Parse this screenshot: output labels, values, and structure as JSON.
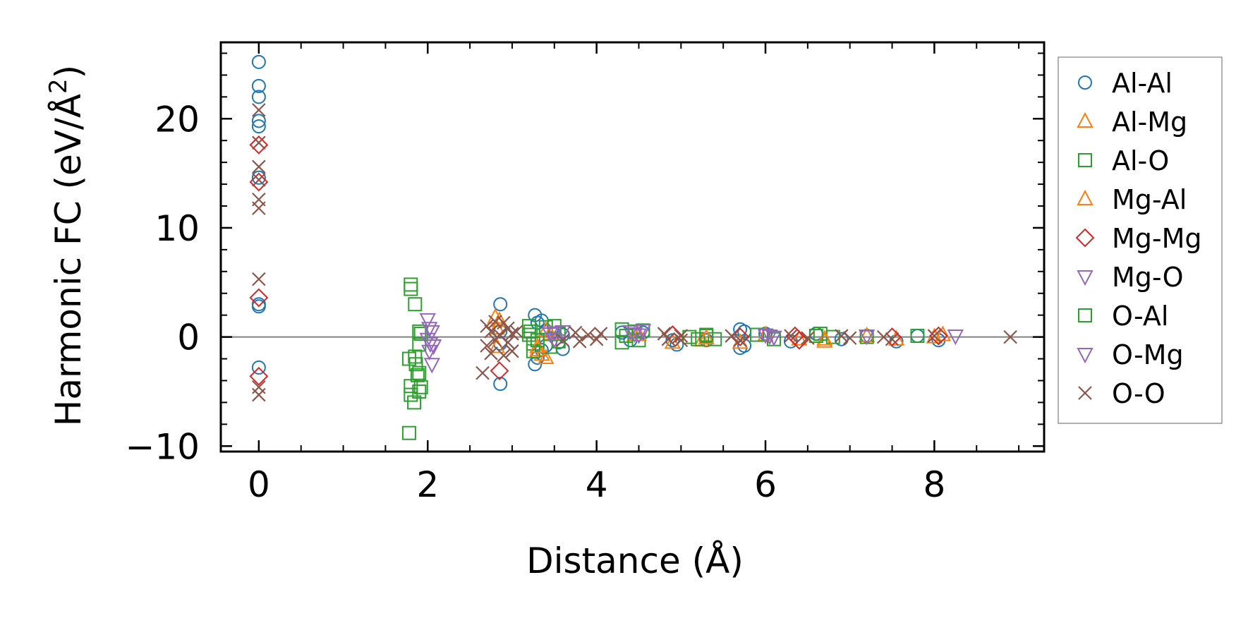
{
  "chart_data": {
    "type": "scatter",
    "xlabel": "Distance (Å)",
    "ylabel": "Harmonic FC (eV/Å",
    "ylabel_sup": "2",
    "ylabel_close": ")",
    "xlim": [
      -0.45,
      9.3
    ],
    "ylim": [
      -10.5,
      27
    ],
    "x_ticks": [
      0,
      2,
      4,
      6,
      8
    ],
    "x_tick_labels": [
      "0",
      "2",
      "4",
      "6",
      "8"
    ],
    "y_ticks": [
      -10,
      0,
      10,
      20
    ],
    "y_tick_labels": [
      "−10",
      "0",
      "10",
      "20"
    ],
    "zero_line": true,
    "grid": false,
    "legend_position": "outside-right",
    "series": [
      {
        "name": "Al-Al",
        "marker": "circle",
        "color": "#1f77b4",
        "points": [
          [
            0,
            25.2
          ],
          [
            0,
            23
          ],
          [
            0,
            22
          ],
          [
            0,
            19.8
          ],
          [
            0,
            19.3
          ],
          [
            0,
            14.6
          ],
          [
            0,
            3
          ],
          [
            0,
            2.8
          ],
          [
            0,
            -2.8
          ],
          [
            2.86,
            3
          ],
          [
            2.86,
            -4.3
          ],
          [
            2.86,
            0.5
          ],
          [
            2.86,
            -0.6
          ],
          [
            3.27,
            2
          ],
          [
            3.27,
            -2.5
          ],
          [
            3.3,
            1.3
          ],
          [
            3.3,
            -1.9
          ],
          [
            3.35,
            1.5
          ],
          [
            3.35,
            -1.2
          ],
          [
            3.4,
            0.6
          ],
          [
            3.4,
            -0.8
          ],
          [
            3.5,
            0.3
          ],
          [
            3.55,
            -0.5
          ],
          [
            3.6,
            0.2
          ],
          [
            3.6,
            -1.1
          ],
          [
            4.3,
            0.4
          ],
          [
            4.4,
            -0.3
          ],
          [
            4.55,
            0.4
          ],
          [
            4.9,
            -0.3
          ],
          [
            4.95,
            -0.7
          ],
          [
            5.3,
            -0.3
          ],
          [
            5.7,
            0.7
          ],
          [
            5.7,
            -1
          ],
          [
            5.75,
            0.5
          ],
          [
            5.75,
            -0.8
          ],
          [
            6.0,
            0.3
          ],
          [
            6.3,
            -0.4
          ],
          [
            6.6,
            0.3
          ],
          [
            6.9,
            -0.2
          ],
          [
            7.2,
            0.1
          ],
          [
            7.55,
            -0.4
          ],
          [
            7.8,
            0.1
          ],
          [
            8.05,
            -0.3
          ]
        ]
      },
      {
        "name": "Al-Mg",
        "marker": "triangle-up",
        "color": "#ff7f0e",
        "points": [
          [
            2.8,
            1.8
          ],
          [
            2.82,
            0.8
          ],
          [
            2.82,
            -0.9
          ],
          [
            3.3,
            -1.2
          ],
          [
            3.35,
            -1.6
          ],
          [
            3.4,
            -1.9
          ],
          [
            3.4,
            0.6
          ],
          [
            4.45,
            0.2
          ],
          [
            4.9,
            -0.5
          ],
          [
            5.25,
            -0.3
          ],
          [
            5.7,
            -0.5
          ],
          [
            6.0,
            0.2
          ],
          [
            6.4,
            -0.2
          ],
          [
            6.7,
            -0.4
          ],
          [
            7.2,
            0.1
          ],
          [
            7.55,
            -0.2
          ],
          [
            8.1,
            0.2
          ]
        ]
      },
      {
        "name": "Al-O",
        "marker": "square",
        "color": "#2ca02c",
        "points": [
          [
            1.8,
            4.8
          ],
          [
            1.8,
            4.4
          ],
          [
            1.85,
            3
          ],
          [
            1.78,
            -2
          ],
          [
            1.8,
            -4.5
          ],
          [
            1.8,
            -5.3
          ],
          [
            1.78,
            -8.8
          ],
          [
            1.84,
            -6
          ],
          [
            1.86,
            -2.5
          ],
          [
            1.88,
            -3.5
          ],
          [
            1.9,
            0.5
          ],
          [
            1.9,
            -0.7
          ],
          [
            1.92,
            0.3
          ],
          [
            1.92,
            -4.6
          ],
          [
            3.2,
            1
          ],
          [
            3.2,
            0.2
          ],
          [
            3.25,
            -0.6
          ],
          [
            3.25,
            -1.3
          ],
          [
            3.4,
            0.9
          ],
          [
            3.45,
            -0.9
          ],
          [
            3.5,
            1
          ],
          [
            3.55,
            0.3
          ],
          [
            3.55,
            -0.4
          ],
          [
            4.3,
            0.7
          ],
          [
            4.3,
            -0.5
          ],
          [
            4.45,
            0.5
          ],
          [
            4.5,
            -0.3
          ],
          [
            4.55,
            0.6
          ],
          [
            5.1,
            0
          ],
          [
            5.2,
            -0.2
          ],
          [
            5.3,
            0.1
          ],
          [
            5.4,
            -0.2
          ],
          [
            5.9,
            0.2
          ],
          [
            6.1,
            -0.2
          ],
          [
            6.65,
            0.3
          ],
          [
            6.8,
            0
          ],
          [
            7.2,
            0
          ],
          [
            7.8,
            0.1
          ]
        ]
      },
      {
        "name": "Mg-Al",
        "marker": "triangle-up",
        "color": "#ff7f0e",
        "points": [
          [
            2.85,
            1.5
          ],
          [
            3.3,
            -0.9
          ],
          [
            3.45,
            0.3
          ],
          [
            4.5,
            0.2
          ],
          [
            5.3,
            -0.1
          ],
          [
            6.7,
            -0.2
          ],
          [
            8.0,
            0
          ]
        ]
      },
      {
        "name": "Mg-Mg",
        "marker": "diamond",
        "color": "#d62728",
        "points": [
          [
            0,
            17.6
          ],
          [
            0,
            14.2
          ],
          [
            0,
            3.6
          ],
          [
            0,
            -3.6
          ],
          [
            2.85,
            -3.1
          ],
          [
            4.9,
            0.2
          ],
          [
            5.7,
            0
          ],
          [
            6.35,
            0.1
          ],
          [
            6.4,
            -0.3
          ],
          [
            7.5,
            0
          ],
          [
            8.05,
            0.1
          ]
        ]
      },
      {
        "name": "Mg-O",
        "marker": "triangle-down",
        "color": "#9467bd",
        "points": [
          [
            2.0,
            1.6
          ],
          [
            2.0,
            -0.2
          ],
          [
            2.02,
            -1.3
          ],
          [
            2.05,
            -2.5
          ],
          [
            2.05,
            0.5
          ],
          [
            2.07,
            -0.8
          ],
          [
            3.45,
            0.3
          ],
          [
            3.5,
            -0.2
          ],
          [
            3.6,
            0.5
          ],
          [
            4.4,
            0.5
          ],
          [
            4.5,
            0.2
          ],
          [
            4.55,
            0.6
          ],
          [
            6.0,
            0.2
          ],
          [
            6.1,
            0
          ],
          [
            7.2,
            0.1
          ],
          [
            8.25,
            0.1
          ]
        ]
      },
      {
        "name": "O-Al",
        "marker": "square",
        "color": "#2ca02c",
        "points": [
          [
            1.85,
            -1.8
          ],
          [
            1.9,
            -3.3
          ],
          [
            1.9,
            -5
          ],
          [
            3.22,
            0.5
          ],
          [
            3.3,
            -0.3
          ],
          [
            4.35,
            0.1
          ],
          [
            5.3,
            0.2
          ],
          [
            6.6,
            0.1
          ]
        ]
      },
      {
        "name": "O-Mg",
        "marker": "triangle-down",
        "color": "#9467bd",
        "points": [
          [
            2.02,
            0.8
          ],
          [
            2.03,
            -0.6
          ],
          [
            3.5,
            0.4
          ],
          [
            4.45,
            0.3
          ],
          [
            6.05,
            0.1
          ]
        ]
      },
      {
        "name": "O-O",
        "marker": "x",
        "color": "#8c564b",
        "points": [
          [
            0,
            20.8
          ],
          [
            0,
            17.8
          ],
          [
            0,
            15.6
          ],
          [
            0,
            14.4
          ],
          [
            0,
            12.6
          ],
          [
            0,
            11.8
          ],
          [
            0,
            5.3
          ],
          [
            0,
            -4.6
          ],
          [
            0,
            -5.3
          ],
          [
            2.65,
            -3.3
          ],
          [
            2.7,
            1
          ],
          [
            2.7,
            -0.8
          ],
          [
            2.75,
            0.5
          ],
          [
            2.75,
            -1.5
          ],
          [
            2.8,
            1.4
          ],
          [
            2.8,
            -0.3
          ],
          [
            2.85,
            0.2
          ],
          [
            2.9,
            1.3
          ],
          [
            2.9,
            -1.7
          ],
          [
            2.95,
            0.8
          ],
          [
            2.95,
            -0.5
          ],
          [
            3.0,
            0.3
          ],
          [
            3.0,
            -1.3
          ],
          [
            3.05,
            0.5
          ],
          [
            3.6,
            -0.3
          ],
          [
            3.75,
            0.4
          ],
          [
            3.8,
            -0.4
          ],
          [
            3.9,
            0.2
          ],
          [
            4.0,
            -0.2
          ],
          [
            4.05,
            0.3
          ],
          [
            4.8,
            0.3
          ],
          [
            4.85,
            -0.2
          ],
          [
            5.0,
            0.1
          ],
          [
            5.0,
            -0.3
          ],
          [
            5.6,
            0.1
          ],
          [
            5.7,
            -0.3
          ],
          [
            6.3,
            0.1
          ],
          [
            6.5,
            -0.1
          ],
          [
            6.9,
            0.1
          ],
          [
            7.0,
            -0.1
          ],
          [
            7.4,
            0
          ],
          [
            7.5,
            -0.2
          ],
          [
            8.0,
            0.1
          ],
          [
            8.9,
            0
          ]
        ]
      }
    ]
  }
}
